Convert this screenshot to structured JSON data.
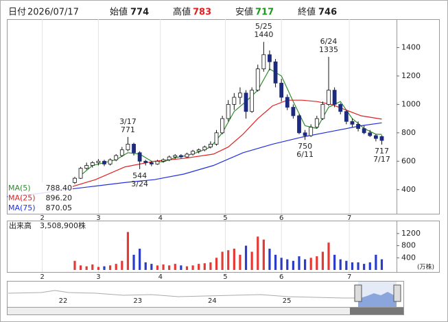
{
  "chart_data": {
    "type": "candlestick",
    "header": {
      "date_label": "日付",
      "date": "2026/07/17",
      "open_label": "始値",
      "open": 774,
      "high_label": "高値",
      "high": 783,
      "low_label": "安値",
      "low": 717,
      "close_label": "終値",
      "close": 746
    },
    "xlim": [
      0,
      132
    ],
    "xticks": [
      {
        "value": 12,
        "label": "2"
      },
      {
        "value": 31,
        "label": "3"
      },
      {
        "value": 52,
        "label": "4"
      },
      {
        "value": 74,
        "label": "5"
      },
      {
        "value": 93,
        "label": "6"
      },
      {
        "value": 116,
        "label": "7"
      }
    ],
    "ylim": [
      230,
      1600
    ],
    "yticks": [
      400,
      600,
      800,
      1000,
      1200,
      1400
    ],
    "up_color": "#ffffff",
    "down_color": "#1c2a80",
    "edge_color": "#111111",
    "x": [
      23,
      25,
      27,
      29,
      31,
      33,
      35,
      37,
      39,
      41,
      43,
      45,
      47,
      49,
      51,
      53,
      55,
      57,
      59,
      61,
      63,
      65,
      67,
      69,
      71,
      73,
      75,
      77,
      79,
      81,
      83,
      85,
      87,
      89,
      91,
      93,
      95,
      97,
      99,
      101,
      103,
      105,
      107,
      109,
      111,
      113,
      115,
      117,
      119,
      121,
      123,
      125,
      127
    ],
    "open": [
      450,
      480,
      550,
      570,
      590,
      600,
      580,
      610,
      640,
      680,
      720,
      660,
      600,
      590,
      580,
      600,
      610,
      630,
      640,
      630,
      650,
      670,
      680,
      700,
      720,
      800,
      900,
      1000,
      1050,
      1080,
      950,
      1100,
      1250,
      1350,
      1300,
      1150,
      1050,
      980,
      920,
      800,
      780,
      840,
      900,
      1000,
      1100,
      1000,
      950,
      880,
      860,
      830,
      800,
      780,
      774
    ],
    "high": [
      490,
      560,
      590,
      600,
      615,
      610,
      620,
      650,
      700,
      771,
      730,
      670,
      610,
      600,
      610,
      620,
      640,
      650,
      650,
      660,
      680,
      690,
      710,
      740,
      820,
      920,
      1030,
      1080,
      1120,
      1100,
      1120,
      1280,
      1440,
      1380,
      1320,
      1180,
      1070,
      1000,
      930,
      820,
      860,
      920,
      1020,
      1335,
      1120,
      1010,
      960,
      900,
      880,
      850,
      820,
      790,
      783
    ],
    "low": [
      440,
      475,
      540,
      555,
      570,
      565,
      570,
      600,
      630,
      670,
      640,
      544,
      570,
      565,
      575,
      590,
      600,
      615,
      620,
      625,
      640,
      655,
      670,
      690,
      710,
      790,
      880,
      960,
      1000,
      900,
      940,
      1090,
      1230,
      1240,
      1120,
      1020,
      960,
      900,
      790,
      750,
      770,
      830,
      890,
      990,
      980,
      930,
      860,
      840,
      810,
      790,
      770,
      740,
      717
    ],
    "close": [
      480,
      550,
      570,
      590,
      600,
      580,
      610,
      640,
      680,
      720,
      660,
      600,
      590,
      580,
      600,
      610,
      630,
      640,
      630,
      650,
      670,
      680,
      700,
      720,
      800,
      900,
      1000,
      1050,
      1080,
      950,
      1100,
      1250,
      1350,
      1300,
      1150,
      1050,
      980,
      920,
      800,
      780,
      840,
      900,
      1000,
      1100,
      1000,
      950,
      880,
      860,
      830,
      800,
      780,
      760,
      746
    ],
    "series": [
      {
        "name": "MA(5)",
        "color": "#2e8b2e",
        "last_value": {
          "value": 788.4,
          "label": "788.40"
        },
        "x": [
          25,
          29,
          33,
          37,
          41,
          45,
          49,
          53,
          57,
          61,
          65,
          69,
          73,
          77,
          81,
          85,
          89,
          93,
          97,
          101,
          105,
          109,
          113,
          117,
          121,
          125,
          127
        ],
        "values": [
          500,
          570,
          590,
          610,
          660,
          650,
          600,
          595,
          625,
          640,
          665,
          700,
          800,
          950,
          1020,
          1100,
          1250,
          1200,
          1020,
          850,
          830,
          980,
          1020,
          900,
          830,
          790,
          788.4
        ]
      },
      {
        "name": "MA(25)",
        "color": "#e02020",
        "last_value": {
          "value": 896.2,
          "label": "896.20"
        },
        "x": [
          22,
          30,
          40,
          50,
          60,
          70,
          75,
          80,
          85,
          90,
          95,
          100,
          105,
          110,
          115,
          120,
          127
        ],
        "values": [
          420,
          470,
          560,
          600,
          620,
          650,
          700,
          790,
          900,
          990,
          1030,
          1030,
          1020,
          1000,
          960,
          920,
          896.2
        ]
      },
      {
        "name": "MA(75)",
        "color": "#2030e0",
        "last_value": {
          "value": 870.05,
          "label": "870.05"
        },
        "x": [
          0,
          10,
          20,
          30,
          40,
          50,
          60,
          70,
          80,
          90,
          100,
          110,
          120,
          127
        ],
        "values": [
          350,
          370,
          400,
          425,
          450,
          470,
          510,
          570,
          660,
          720,
          770,
          810,
          850,
          870.05
        ]
      }
    ],
    "annotations": [
      {
        "date": "3/17",
        "value": 771,
        "kind": "high"
      },
      {
        "date": "3/24",
        "value": 544,
        "kind": "low"
      },
      {
        "date": "5/25",
        "value": 1440,
        "kind": "high"
      },
      {
        "date": "6/11",
        "value": 750,
        "kind": "low"
      },
      {
        "date": "6/24",
        "value": 1335,
        "kind": "high"
      },
      {
        "date": "7/17",
        "value": 717,
        "kind": "low"
      }
    ],
    "volume": {
      "title": "出来高",
      "total": "3,508,900株",
      "unit": "(万株)",
      "up_color": "#e53935",
      "down_color": "#2a3cc8",
      "ylim": [
        0,
        1400
      ],
      "yticks": [
        400,
        800,
        1200
      ],
      "values": [
        300,
        150,
        120,
        180,
        100,
        120,
        150,
        200,
        300,
        1250,
        500,
        700,
        250,
        200,
        150,
        180,
        150,
        200,
        150,
        120,
        150,
        200,
        220,
        250,
        400,
        600,
        650,
        700,
        500,
        800,
        600,
        1100,
        1000,
        700,
        500,
        400,
        350,
        300,
        450,
        350,
        400,
        450,
        600,
        900,
        500,
        350,
        300,
        250,
        250,
        200,
        250,
        500,
        350.89
      ]
    },
    "navigator": {
      "labels": [
        "22",
        "23",
        "24",
        "25"
      ]
    }
  }
}
